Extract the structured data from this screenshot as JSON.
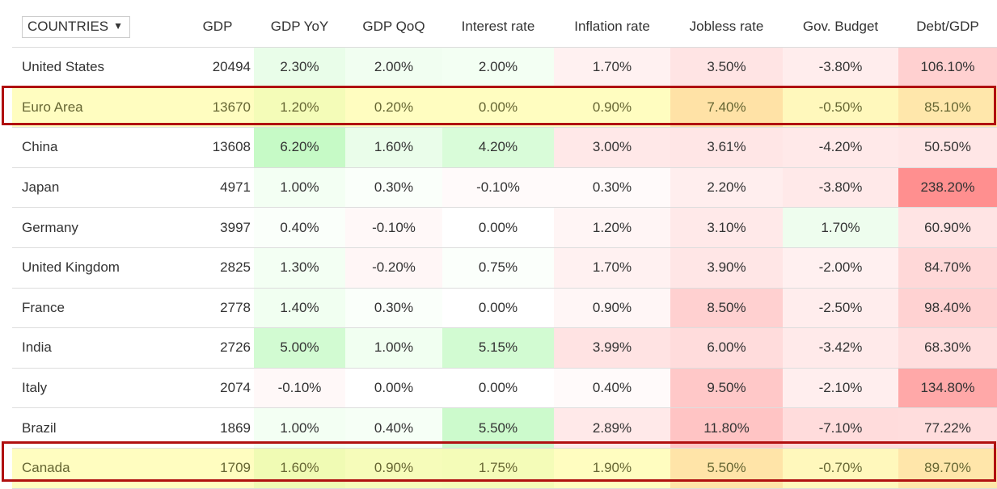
{
  "header": {
    "selector_label": "COUNTRIES",
    "caret": "▼",
    "columns": [
      "GDP",
      "GDP YoY",
      "GDP QoQ",
      "Interest rate",
      "Inflation rate",
      "Jobless rate",
      "Gov. Budget",
      "Debt/GDP"
    ]
  },
  "rows": [
    {
      "country": "United States",
      "gdp": "20494",
      "gdp_yoy": "2.30%",
      "gdp_qoq": "2.00%",
      "interest": "2.00%",
      "inflation": "1.70%",
      "jobless": "3.50%",
      "budget": "-3.80%",
      "debt": "106.10%",
      "highlighted": false,
      "colors": [
        "#ffffff",
        "#ffffff",
        "#e9fde9",
        "#f1fef1",
        "#f3fff3",
        "#fff1f1",
        "#ffe4e4",
        "#ffeded",
        "#ffd0d0"
      ]
    },
    {
      "country": "Euro Area",
      "gdp": "13670",
      "gdp_yoy": "1.20%",
      "gdp_qoq": "0.20%",
      "interest": "0.00%",
      "inflation": "0.90%",
      "jobless": "7.40%",
      "budget": "-0.50%",
      "debt": "85.10%",
      "highlighted": true,
      "colors": [
        "#fffdc0",
        "#fffdc0",
        "#f4fcb8",
        "#fffdc0",
        "#fffdc0",
        "#fffdc0",
        "#ffe2a6",
        "#fff8bc",
        "#ffe7ab"
      ]
    },
    {
      "country": "China",
      "gdp": "13608",
      "gdp_yoy": "6.20%",
      "gdp_qoq": "1.60%",
      "interest": "4.20%",
      "inflation": "3.00%",
      "jobless": "3.61%",
      "budget": "-4.20%",
      "debt": "50.50%",
      "highlighted": false,
      "colors": [
        "#ffffff",
        "#ffffff",
        "#c6fac6",
        "#eafdea",
        "#d9fcd9",
        "#ffe8e8",
        "#ffe6e6",
        "#ffe9e9",
        "#ffe6e6"
      ]
    },
    {
      "country": "Japan",
      "gdp": "4971",
      "gdp_yoy": "1.00%",
      "gdp_qoq": "0.30%",
      "interest": "-0.10%",
      "inflation": "0.30%",
      "jobless": "2.20%",
      "budget": "-3.80%",
      "debt": "238.20%",
      "highlighted": false,
      "colors": [
        "#ffffff",
        "#ffffff",
        "#f3fff3",
        "#fafffa",
        "#fffafa",
        "#fffafa",
        "#ffeeee",
        "#ffe9e9",
        "#ff8f8f"
      ]
    },
    {
      "country": "Germany",
      "gdp": "3997",
      "gdp_yoy": "0.40%",
      "gdp_qoq": "-0.10%",
      "interest": "0.00%",
      "inflation": "1.20%",
      "jobless": "3.10%",
      "budget": "1.70%",
      "debt": "60.90%",
      "highlighted": false,
      "colors": [
        "#ffffff",
        "#ffffff",
        "#fafffa",
        "#fff8f8",
        "#ffffff",
        "#fff5f5",
        "#ffe9e9",
        "#eefdee",
        "#ffe4e4"
      ]
    },
    {
      "country": "United Kingdom",
      "gdp": "2825",
      "gdp_yoy": "1.30%",
      "gdp_qoq": "-0.20%",
      "interest": "0.75%",
      "inflation": "1.70%",
      "jobless": "3.90%",
      "budget": "-2.00%",
      "debt": "84.70%",
      "highlighted": false,
      "colors": [
        "#ffffff",
        "#ffffff",
        "#f3fff3",
        "#fff6f6",
        "#fbfffb",
        "#fff1f1",
        "#ffe6e6",
        "#fff0f0",
        "#ffd8d8"
      ]
    },
    {
      "country": "France",
      "gdp": "2778",
      "gdp_yoy": "1.40%",
      "gdp_qoq": "0.30%",
      "interest": "0.00%",
      "inflation": "0.90%",
      "jobless": "8.50%",
      "budget": "-2.50%",
      "debt": "98.40%",
      "highlighted": false,
      "colors": [
        "#ffffff",
        "#ffffff",
        "#f1fff1",
        "#fafffa",
        "#ffffff",
        "#fff6f6",
        "#ffd0d0",
        "#ffeded",
        "#ffd2d2"
      ]
    },
    {
      "country": "India",
      "gdp": "2726",
      "gdp_yoy": "5.00%",
      "gdp_qoq": "1.00%",
      "interest": "5.15%",
      "inflation": "3.99%",
      "jobless": "6.00%",
      "budget": "-3.42%",
      "debt": "68.30%",
      "highlighted": false,
      "colors": [
        "#ffffff",
        "#ffffff",
        "#d2fbd2",
        "#f1fff1",
        "#d2fbd2",
        "#ffe3e3",
        "#ffdcdc",
        "#ffeaea",
        "#ffdede"
      ]
    },
    {
      "country": "Italy",
      "gdp": "2074",
      "gdp_yoy": "-0.10%",
      "gdp_qoq": "0.00%",
      "interest": "0.00%",
      "inflation": "0.40%",
      "jobless": "9.50%",
      "budget": "-2.10%",
      "debt": "134.80%",
      "highlighted": false,
      "colors": [
        "#ffffff",
        "#ffffff",
        "#fff8f8",
        "#ffffff",
        "#ffffff",
        "#fffafa",
        "#ffc8c8",
        "#ffeeee",
        "#ffa8a8"
      ]
    },
    {
      "country": "Brazil",
      "gdp": "1869",
      "gdp_yoy": "1.00%",
      "gdp_qoq": "0.40%",
      "interest": "5.50%",
      "inflation": "2.89%",
      "jobless": "11.80%",
      "budget": "-7.10%",
      "debt": "77.22%",
      "highlighted": false,
      "colors": [
        "#ffffff",
        "#ffffff",
        "#f3fff3",
        "#f6fff6",
        "#ccfacc",
        "#ffe9e9",
        "#ffc4c4",
        "#ffdcdc",
        "#ffdddd"
      ]
    },
    {
      "country": "Canada",
      "gdp": "1709",
      "gdp_yoy": "1.60%",
      "gdp_qoq": "0.90%",
      "interest": "1.75%",
      "inflation": "1.90%",
      "jobless": "5.50%",
      "budget": "-0.70%",
      "debt": "89.70%",
      "highlighted": true,
      "colors": [
        "#fffdc0",
        "#fffdc0",
        "#f0fbb4",
        "#f6fcba",
        "#f4fcb8",
        "#fffdc0",
        "#ffe4a8",
        "#fff8bc",
        "#ffe6aa"
      ]
    }
  ]
}
